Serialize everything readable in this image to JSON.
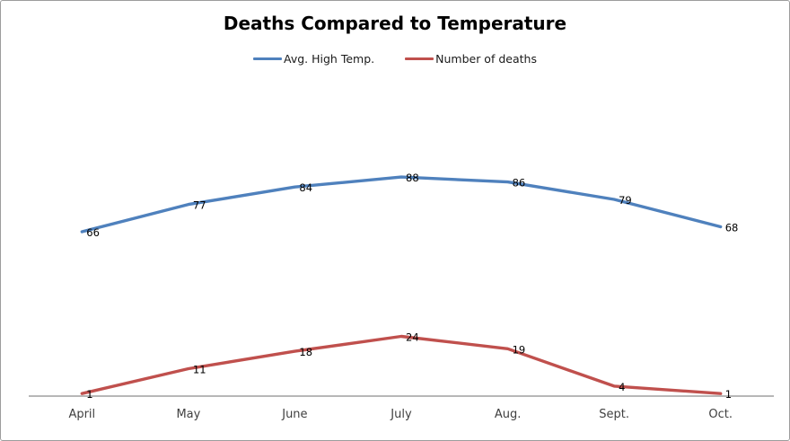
{
  "title": "Deaths Compared to Temperature",
  "chart_data": {
    "type": "line",
    "title": "Deaths Compared to Temperature",
    "categories": [
      "April",
      "May",
      "June",
      "July",
      "Aug.",
      "Sept.",
      "Oct."
    ],
    "series": [
      {
        "name": "Avg. High Temp.",
        "color": "#4F81BD",
        "values": [
          66,
          77,
          84,
          88,
          86,
          79,
          68
        ]
      },
      {
        "name": "Number of deaths",
        "color": "#C0504D",
        "values": [
          1,
          11,
          18,
          24,
          19,
          4,
          1
        ]
      }
    ],
    "xlabel": "",
    "ylabel": "",
    "ylim": [
      0,
      100
    ],
    "grid": false,
    "gridlines": "none",
    "y_axis_visible": false,
    "x_axis_line_color": "#8c8c8c",
    "legend_position": "top",
    "data_labels": true,
    "data_label_color": "#000000",
    "axis_label_color": "#3f3f3f",
    "background_color": "#ffffff",
    "border_color": "#9c9c9c"
  }
}
